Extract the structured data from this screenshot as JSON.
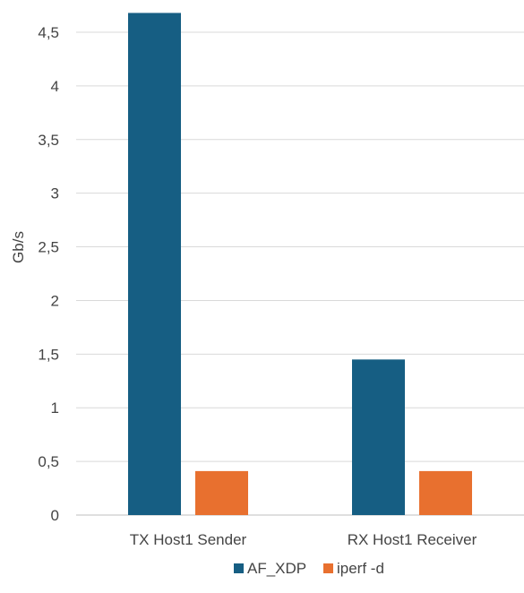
{
  "chart_data": {
    "type": "bar",
    "title": "",
    "xlabel": "",
    "ylabel": "Gb/s",
    "ylim": [
      0,
      4.5
    ],
    "y_ticks": [
      "0",
      "0,5",
      "1",
      "1,5",
      "2",
      "2,5",
      "3",
      "3,5",
      "4",
      "4,5"
    ],
    "y_tick_values": [
      0,
      0.5,
      1,
      1.5,
      2,
      2.5,
      3,
      3.5,
      4,
      4.5
    ],
    "grid": true,
    "legend_position": "bottom",
    "categories": [
      "TX Host1 Sender",
      "RX Host1 Receiver"
    ],
    "series": [
      {
        "name": "AF_XDP",
        "color": "#165E83",
        "values": [
          4.68,
          1.45
        ]
      },
      {
        "name": "iperf -d",
        "color": "#E8702F",
        "values": [
          0.41,
          0.41
        ]
      }
    ]
  }
}
